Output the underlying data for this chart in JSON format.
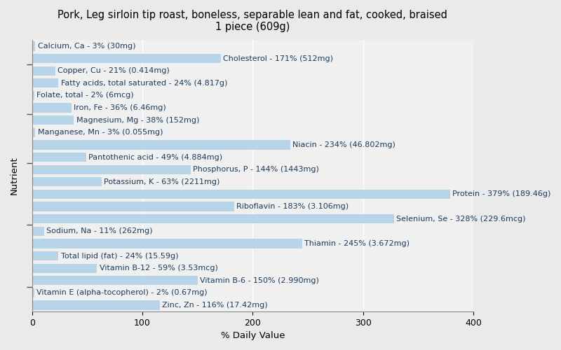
{
  "title": "Pork, Leg sirloin tip roast, boneless, separable lean and fat, cooked, braised\n1 piece (609g)",
  "xlabel": "% Daily Value",
  "ylabel": "Nutrient",
  "xlim": [
    0,
    400
  ],
  "xticks": [
    0,
    100,
    200,
    300,
    400
  ],
  "bar_color": "#b8d4e8",
  "background_color": "#eaeaea",
  "plot_bg_color": "#f0f0f0",
  "text_color": "#1a3a5c",
  "nutrients": [
    {
      "label": "Calcium, Ca - 3% (30mg)",
      "value": 3
    },
    {
      "label": "Cholesterol - 171% (512mg)",
      "value": 171
    },
    {
      "label": "Copper, Cu - 21% (0.414mg)",
      "value": 21
    },
    {
      "label": "Fatty acids, total saturated - 24% (4.817g)",
      "value": 24
    },
    {
      "label": "Folate, total - 2% (6mcg)",
      "value": 2
    },
    {
      "label": "Iron, Fe - 36% (6.46mg)",
      "value": 36
    },
    {
      "label": "Magnesium, Mg - 38% (152mg)",
      "value": 38
    },
    {
      "label": "Manganese, Mn - 3% (0.055mg)",
      "value": 3
    },
    {
      "label": "Niacin - 234% (46.802mg)",
      "value": 234
    },
    {
      "label": "Pantothenic acid - 49% (4.884mg)",
      "value": 49
    },
    {
      "label": "Phosphorus, P - 144% (1443mg)",
      "value": 144
    },
    {
      "label": "Potassium, K - 63% (2211mg)",
      "value": 63
    },
    {
      "label": "Protein - 379% (189.46g)",
      "value": 379
    },
    {
      "label": "Riboflavin - 183% (3.106mg)",
      "value": 183
    },
    {
      "label": "Selenium, Se - 328% (229.6mcg)",
      "value": 328
    },
    {
      "label": "Sodium, Na - 11% (262mg)",
      "value": 11
    },
    {
      "label": "Thiamin - 245% (3.672mg)",
      "value": 245
    },
    {
      "label": "Total lipid (fat) - 24% (15.59g)",
      "value": 24
    },
    {
      "label": "Vitamin B-12 - 59% (3.53mcg)",
      "value": 59
    },
    {
      "label": "Vitamin B-6 - 150% (2.990mg)",
      "value": 150
    },
    {
      "label": "Vitamin E (alpha-tocopherol) - 2% (0.67mg)",
      "value": 2
    },
    {
      "label": "Zinc, Zn - 116% (17.42mg)",
      "value": 116
    }
  ],
  "ytick_positions": [
    1.5,
    6.5,
    11.5,
    15.5,
    19.5
  ],
  "title_fontsize": 10.5,
  "axis_label_fontsize": 9.5,
  "tick_fontsize": 9,
  "bar_label_fontsize": 8.0
}
